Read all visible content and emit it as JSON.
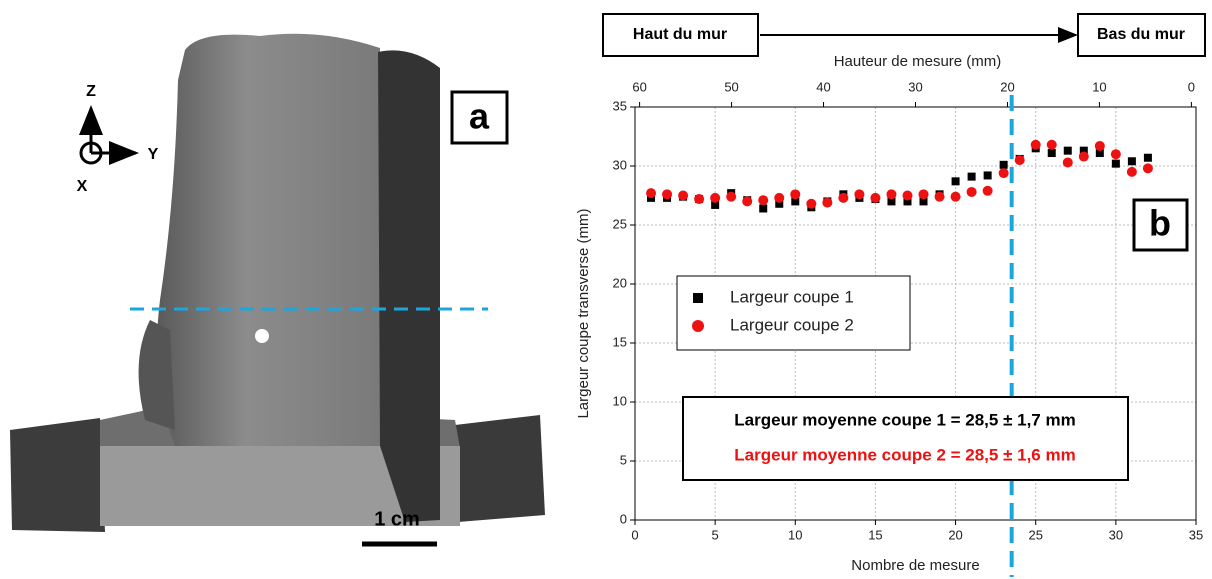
{
  "panel_a": {
    "label": "a",
    "axis_z": "Z",
    "axis_y": "Y",
    "axis_x": "X",
    "scale_bar": "1 cm"
  },
  "chart_data": {
    "type": "scatter",
    "panel_label": "b",
    "top_left_box": "Haut du mur",
    "top_right_box": "Bas du mur",
    "x_label": "Nombre de mesure",
    "y_label": "Largeur coupe transverse (mm)",
    "x2_label": "Hauteur de mesure (mm)",
    "xlim": [
      0,
      35
    ],
    "xticks": [
      0,
      5,
      10,
      15,
      20,
      25,
      30,
      35
    ],
    "x2lim": [
      60.5,
      -0.5
    ],
    "x2ticks": [
      60,
      50,
      40,
      30,
      20,
      10,
      0
    ],
    "ylim": [
      0,
      35
    ],
    "yticks": [
      0,
      5,
      10,
      15,
      20,
      25,
      30,
      35
    ],
    "grid": true,
    "reference_x": 23.5,
    "reference_color": "#1aa7e0",
    "x": [
      1,
      2,
      3,
      4,
      5,
      6,
      7,
      8,
      9,
      10,
      11,
      12,
      13,
      14,
      15,
      16,
      17,
      18,
      19,
      20,
      21,
      22,
      23,
      24,
      25,
      26,
      27,
      28,
      29,
      30,
      31,
      32
    ],
    "series": [
      {
        "name": "Largeur coupe 1",
        "color": "#000000",
        "marker": "square",
        "values": [
          27.3,
          27.3,
          27.4,
          27.2,
          26.7,
          27.7,
          27.1,
          26.4,
          26.8,
          27.0,
          26.5,
          27.0,
          27.6,
          27.3,
          27.2,
          27.0,
          27.0,
          27.0,
          27.6,
          28.7,
          29.1,
          29.2,
          30.1,
          30.6,
          31.5,
          31.1,
          31.3,
          31.3,
          31.1,
          30.2,
          30.4,
          30.7
        ]
      },
      {
        "name": "Largeur coupe 2",
        "color": "#ee1111",
        "marker": "circle",
        "values": [
          27.7,
          27.6,
          27.5,
          27.2,
          27.3,
          27.4,
          27.0,
          27.1,
          27.3,
          27.6,
          26.8,
          26.9,
          27.3,
          27.6,
          27.3,
          27.6,
          27.5,
          27.6,
          27.4,
          27.4,
          27.8,
          27.9,
          29.4,
          30.5,
          31.8,
          31.8,
          30.3,
          30.8,
          31.7,
          31.0,
          29.5,
          29.8
        ]
      }
    ],
    "annotations": [
      {
        "text": "Largeur moyenne coupe 1 = 28,5 ± 1,7 mm",
        "color": "#000000"
      },
      {
        "text": "Largeur moyenne coupe 2 = 28,5 ± 1,6 mm",
        "color": "#ee1111"
      }
    ]
  }
}
